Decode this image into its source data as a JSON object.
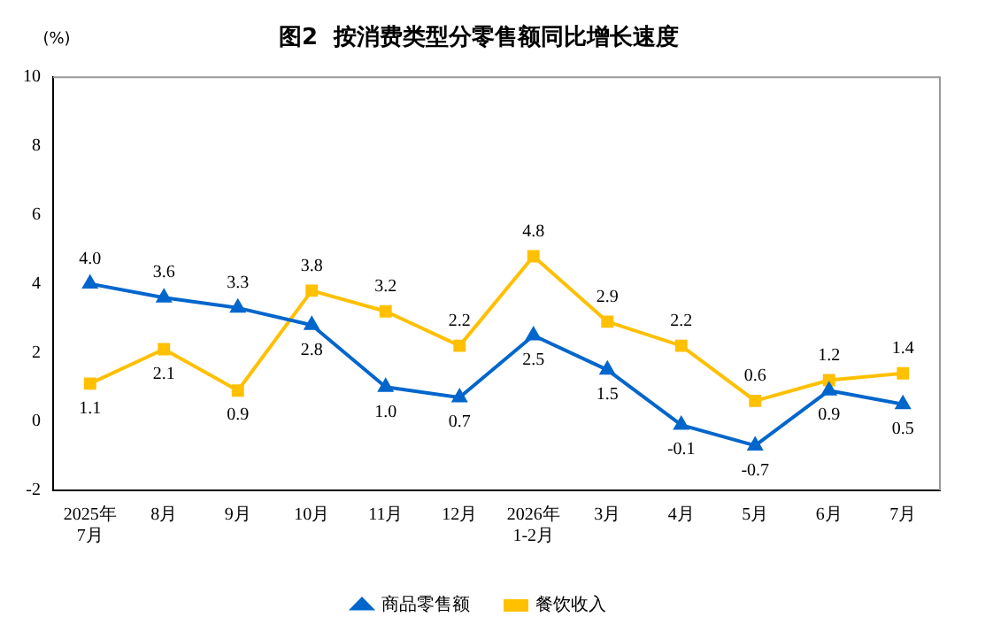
{
  "chart_data": {
    "type": "line",
    "title": "图2  按消费类型分零售额同比增长速度",
    "ylabel": "(%)",
    "categories": [
      "2025年\n7月",
      "8月",
      "9月",
      "10月",
      "11月",
      "12月",
      "2026年\n1-2月",
      "3月",
      "4月",
      "5月",
      "6月",
      "7月"
    ],
    "series": [
      {
        "name": "商品零售额",
        "color": "#0066cc",
        "marker": "triangle",
        "values": [
          4.0,
          3.6,
          3.3,
          2.8,
          1.0,
          0.7,
          2.5,
          1.5,
          -0.1,
          -0.7,
          0.9,
          0.5
        ],
        "value_labels": [
          "4.0",
          "3.6",
          "3.3",
          "2.8",
          "1.0",
          "0.7",
          "2.5",
          "1.5",
          "-0.1",
          "-0.7",
          "0.9",
          "0.5"
        ]
      },
      {
        "name": "餐饮收入",
        "color": "#ffc000",
        "marker": "square",
        "values": [
          1.1,
          2.1,
          0.9,
          3.8,
          3.2,
          2.2,
          4.8,
          2.9,
          2.2,
          0.6,
          1.2,
          1.4
        ],
        "value_labels": [
          "1.1",
          "2.1",
          "0.9",
          "3.8",
          "3.2",
          "2.2",
          "4.8",
          "2.9",
          "2.2",
          "0.6",
          "1.2",
          "1.4"
        ]
      }
    ],
    "ylim": [
      -2,
      10
    ],
    "yticks": [
      -2,
      0,
      2,
      4,
      6,
      8,
      10
    ],
    "grid": false,
    "legend": "bottom",
    "line_style": "solid"
  }
}
